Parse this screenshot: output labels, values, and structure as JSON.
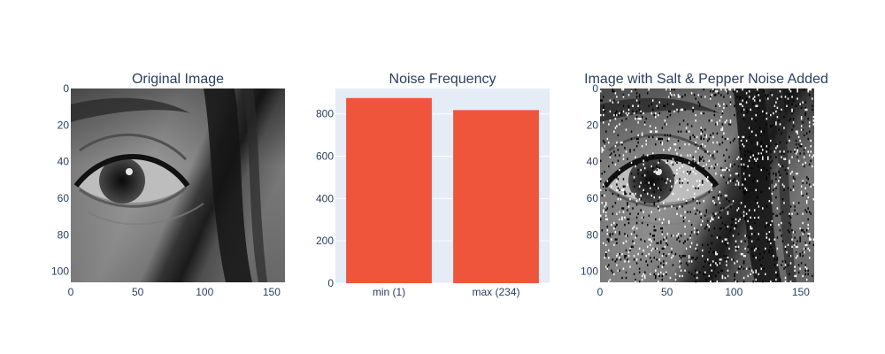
{
  "chart_data": [
    {
      "type": "image",
      "title": "Original Image",
      "x_ticks": [
        0,
        50,
        100,
        150
      ],
      "y_ticks": [
        0,
        20,
        40,
        60,
        80,
        100
      ],
      "xlim": [
        0,
        160
      ],
      "ylim": [
        0,
        106
      ],
      "content": "grayscale eye photograph"
    },
    {
      "type": "bar",
      "title": "Noise Frequency",
      "categories": [
        "min (1)",
        "max (234)"
      ],
      "values": [
        875,
        818
      ],
      "ylim": [
        0,
        920
      ],
      "y_ticks": [
        0,
        200,
        400,
        600,
        800
      ],
      "bar_color": "#ef553b",
      "plot_bg": "#e5ecf6",
      "grid": true
    },
    {
      "type": "image",
      "title": "Image with Salt & Pepper Noise Added",
      "x_ticks": [
        0,
        50,
        100,
        150
      ],
      "y_ticks": [
        0,
        20,
        40,
        60,
        80,
        100
      ],
      "xlim": [
        0,
        160
      ],
      "ylim": [
        0,
        106
      ],
      "content": "grayscale eye photograph with black and white noise pixels"
    }
  ]
}
